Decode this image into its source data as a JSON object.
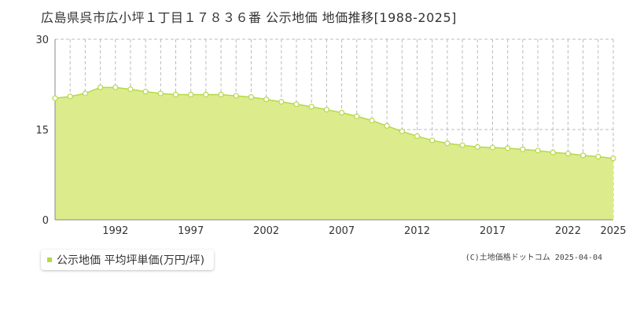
{
  "title": "広島県呉市広小坪１丁目１７８３６番 公示地価 地価推移[1988-2025]",
  "legend": {
    "label": "公示地価 平均坪単価(万円/坪)"
  },
  "copyright": "(C)土地価格ドットコム 2025-04-04",
  "colors": {
    "fill": "#dcec8c",
    "line": "#b5d84a",
    "point_fill": "#ffffff",
    "grid": "#bbbbbb"
  },
  "chart_data": {
    "type": "area",
    "title": "広島県呉市広小坪１丁目１７８３６番 公示地価 地価推移[1988-2025]",
    "xlabel": "",
    "ylabel": "",
    "ylim": [
      0,
      30
    ],
    "yticks": [
      0,
      15,
      30
    ],
    "xlim": [
      1988,
      2025
    ],
    "xticks": [
      1992,
      1997,
      2002,
      2007,
      2012,
      2017,
      2022,
      2025
    ],
    "grid": true,
    "legend_position": "bottom-left",
    "series": [
      {
        "name": "公示地価 平均坪単価(万円/坪)",
        "x": [
          1988,
          1989,
          1990,
          1991,
          1992,
          1993,
          1994,
          1995,
          1996,
          1997,
          1998,
          1999,
          2000,
          2001,
          2002,
          2003,
          2004,
          2005,
          2006,
          2007,
          2008,
          2009,
          2010,
          2011,
          2012,
          2013,
          2014,
          2015,
          2016,
          2017,
          2018,
          2019,
          2020,
          2021,
          2022,
          2023,
          2024,
          2025
        ],
        "values": [
          20.2,
          20.5,
          21.0,
          22.0,
          22.0,
          21.7,
          21.3,
          21.0,
          20.8,
          20.8,
          20.8,
          20.8,
          20.6,
          20.4,
          20.0,
          19.6,
          19.2,
          18.8,
          18.3,
          17.8,
          17.2,
          16.5,
          15.6,
          14.7,
          13.9,
          13.2,
          12.7,
          12.4,
          12.1,
          12.0,
          11.9,
          11.7,
          11.5,
          11.2,
          11.0,
          10.7,
          10.5,
          10.2
        ]
      }
    ]
  }
}
